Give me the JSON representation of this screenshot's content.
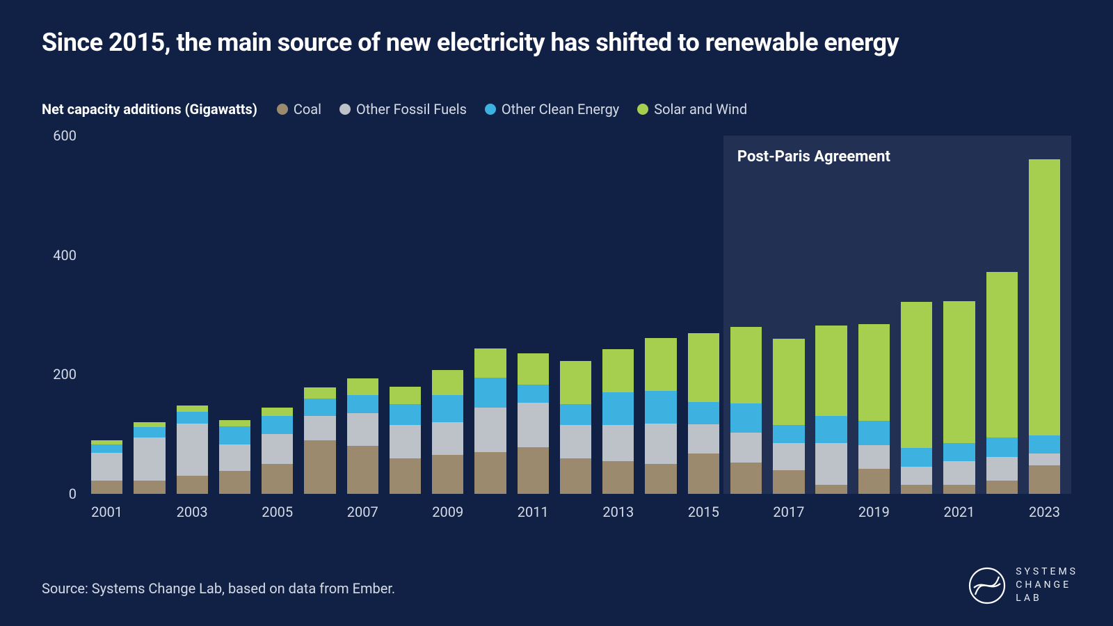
{
  "title": "Since 2015, the main source of new electricity has shifted to renewable energy",
  "ylabel": "Net capacity additions (Gigawatts)",
  "source": "Source: Systems Change Lab, based on data from Ember.",
  "brand": {
    "l1": "SYSTEMS",
    "l2": "CHANGE",
    "l3": "LAB"
  },
  "chart": {
    "type": "stacked-bar",
    "background_color": "#112146",
    "text_color": "#d6dbe6",
    "title_fontsize": 36,
    "label_fontsize": 20,
    "ylim": [
      0,
      600
    ],
    "ytick_step": 200,
    "yticks": [
      0,
      200,
      400,
      600
    ],
    "bar_width": 0.74,
    "annotation": {
      "label": "Post-Paris Agreement",
      "label_fontsize": 22,
      "start_year": "2016",
      "box_color": "rgba(255,255,255,0.07)"
    },
    "series": [
      {
        "key": "coal",
        "label": "Coal",
        "color": "#9c8a6f"
      },
      {
        "key": "other_fossil",
        "label": "Other Fossil Fuels",
        "color": "#bdc2c9"
      },
      {
        "key": "other_clean",
        "label": "Other Clean Energy",
        "color": "#3db1e0"
      },
      {
        "key": "solar_wind",
        "label": "Solar and Wind",
        "color": "#a7cf4f"
      }
    ],
    "years": [
      "2001",
      "2002",
      "2003",
      "2004",
      "2005",
      "2006",
      "2007",
      "2008",
      "2009",
      "2010",
      "2011",
      "2012",
      "2013",
      "2014",
      "2015",
      "2016",
      "2017",
      "2018",
      "2019",
      "2020",
      "2021",
      "2022",
      "2023"
    ],
    "xtick_years": [
      "2001",
      "2003",
      "2005",
      "2007",
      "2009",
      "2011",
      "2013",
      "2015",
      "2017",
      "2019",
      "2021",
      "2023"
    ],
    "data": {
      "2001": {
        "coal": 22,
        "other_fossil": 47,
        "other_clean": 14,
        "solar_wind": 7
      },
      "2002": {
        "coal": 22,
        "other_fossil": 72,
        "other_clean": 18,
        "solar_wind": 8
      },
      "2003": {
        "coal": 30,
        "other_fossil": 88,
        "other_clean": 20,
        "solar_wind": 10
      },
      "2004": {
        "coal": 38,
        "other_fossil": 45,
        "other_clean": 30,
        "solar_wind": 10
      },
      "2005": {
        "coal": 50,
        "other_fossil": 50,
        "other_clean": 30,
        "solar_wind": 15
      },
      "2006": {
        "coal": 90,
        "other_fossil": 40,
        "other_clean": 30,
        "solar_wind": 18
      },
      "2007": {
        "coal": 80,
        "other_fossil": 55,
        "other_clean": 30,
        "solar_wind": 28
      },
      "2008": {
        "coal": 60,
        "other_fossil": 55,
        "other_clean": 35,
        "solar_wind": 30
      },
      "2009": {
        "coal": 65,
        "other_fossil": 55,
        "other_clean": 45,
        "solar_wind": 42
      },
      "2010": {
        "coal": 70,
        "other_fossil": 75,
        "other_clean": 50,
        "solar_wind": 48
      },
      "2011": {
        "coal": 78,
        "other_fossil": 75,
        "other_clean": 30,
        "solar_wind": 52
      },
      "2012": {
        "coal": 60,
        "other_fossil": 55,
        "other_clean": 35,
        "solar_wind": 72
      },
      "2013": {
        "coal": 55,
        "other_fossil": 60,
        "other_clean": 55,
        "solar_wind": 72
      },
      "2014": {
        "coal": 50,
        "other_fossil": 68,
        "other_clean": 55,
        "solar_wind": 88
      },
      "2015": {
        "coal": 68,
        "other_fossil": 48,
        "other_clean": 38,
        "solar_wind": 115
      },
      "2016": {
        "coal": 52,
        "other_fossil": 50,
        "other_clean": 50,
        "solar_wind": 128
      },
      "2017": {
        "coal": 40,
        "other_fossil": 45,
        "other_clean": 30,
        "solar_wind": 145
      },
      "2018": {
        "coal": 15,
        "other_fossil": 70,
        "other_clean": 45,
        "solar_wind": 152
      },
      "2019": {
        "coal": 42,
        "other_fossil": 40,
        "other_clean": 40,
        "solar_wind": 162
      },
      "2020": {
        "coal": 15,
        "other_fossil": 30,
        "other_clean": 32,
        "solar_wind": 245
      },
      "2021": {
        "coal": 15,
        "other_fossil": 40,
        "other_clean": 30,
        "solar_wind": 238
      },
      "2022": {
        "coal": 22,
        "other_fossil": 40,
        "other_clean": 32,
        "solar_wind": 278
      },
      "2023": {
        "coal": 48,
        "other_fossil": 20,
        "other_clean": 30,
        "solar_wind": 462
      }
    }
  }
}
